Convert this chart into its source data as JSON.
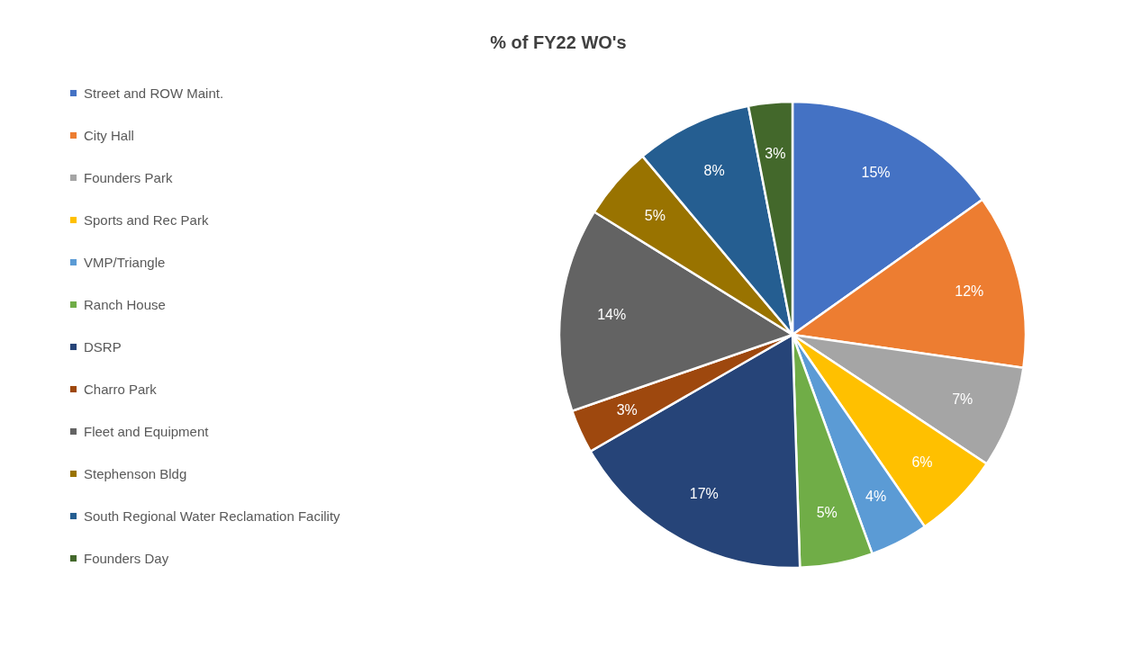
{
  "chart_data": {
    "type": "pie",
    "title": "% of FY22 WO's",
    "categories": [
      "Street and ROW Maint.",
      "City Hall",
      "Founders Park",
      "Sports and Rec Park",
      "VMP/Triangle",
      "Ranch House",
      "DSRP",
      "Charro Park",
      "Fleet and Equipment",
      "Stephenson Bldg",
      "South Regional  Water Reclamation Facility",
      "Founders Day"
    ],
    "values": [
      15,
      12,
      7,
      6,
      4,
      5,
      17,
      3,
      14,
      5,
      8,
      3
    ],
    "colors": [
      "#4472c4",
      "#ed7d31",
      "#a5a5a5",
      "#ffc000",
      "#5b9bd5",
      "#70ad47",
      "#264478",
      "#9e480e",
      "#636363",
      "#997300",
      "#255e91",
      "#43682b"
    ],
    "value_labels": [
      "15%",
      "12%",
      "7%",
      "6%",
      "4%",
      "5%",
      "17%",
      "3%",
      "14%",
      "5%",
      "8%",
      "3%"
    ],
    "legend": "left"
  }
}
